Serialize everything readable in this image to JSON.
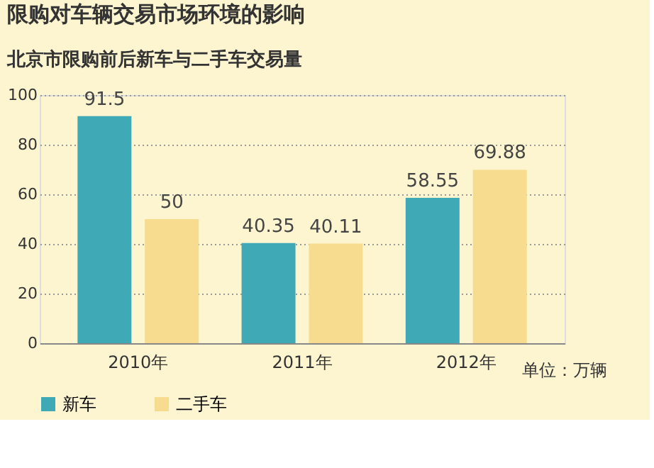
{
  "chart_data": {
    "type": "bar",
    "title": "限购对车辆交易市场环境的影响",
    "subtitle": "北京市限购前后新车与二手车交易量",
    "categories": [
      "2010年",
      "2011年",
      "2012年"
    ],
    "series": [
      {
        "name": "新车",
        "color": "#3fa9b5",
        "values": [
          91.5,
          40.35,
          58.55
        ]
      },
      {
        "name": "二手车",
        "color": "#f7dc8f",
        "values": [
          50,
          40.11,
          69.88
        ]
      }
    ],
    "ylim": [
      0,
      100
    ],
    "yticks": [
      0,
      20,
      40,
      60,
      80,
      100
    ],
    "grid": "y",
    "legend": "bottom",
    "data_labels": true,
    "annotations": [
      "单位：万辆"
    ]
  }
}
